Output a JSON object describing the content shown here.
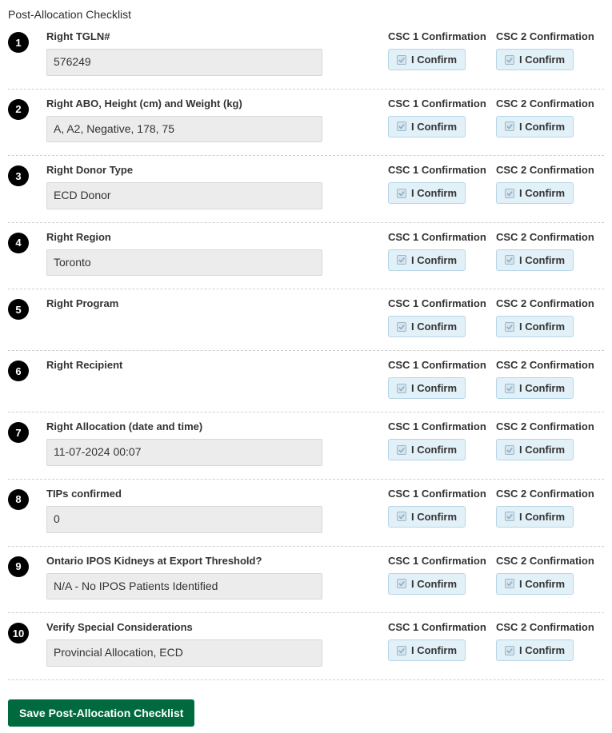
{
  "title": "Post-Allocation Checklist",
  "csc1_header": "CSC 1 Confirmation",
  "csc2_header": "CSC 2 Confirmation",
  "confirm_label": "I Confirm",
  "save_button_label": "Save Post-Allocation Checklist",
  "colors": {
    "number_circle_bg": "#000000",
    "number_circle_text": "#ffffff",
    "input_bg": "#ececec",
    "input_border": "#d7d7d7",
    "confirm_bg": "#e2f0f8",
    "confirm_border": "#b6d6e8",
    "save_bg": "#006a3e",
    "divider": "#cfcfcf"
  },
  "items": [
    {
      "num": "1",
      "label": "Right TGLN#",
      "value": "576249",
      "has_input": true
    },
    {
      "num": "2",
      "label": "Right ABO, Height (cm) and Weight (kg)",
      "value": "A, A2, Negative, 178, 75",
      "has_input": true
    },
    {
      "num": "3",
      "label": "Right Donor Type",
      "value": "ECD Donor",
      "has_input": true
    },
    {
      "num": "4",
      "label": "Right Region",
      "value": "Toronto",
      "has_input": true
    },
    {
      "num": "5",
      "label": "Right Program",
      "value": "",
      "has_input": false
    },
    {
      "num": "6",
      "label": "Right Recipient",
      "value": "",
      "has_input": false
    },
    {
      "num": "7",
      "label": "Right Allocation (date and time)",
      "value": "11-07-2024 00:07",
      "has_input": true
    },
    {
      "num": "8",
      "label": "TIPs confirmed",
      "value": "0",
      "has_input": true
    },
    {
      "num": "9",
      "label": "Ontario IPOS Kidneys at Export Threshold?",
      "value": "N/A - No IPOS Patients Identified",
      "has_input": true
    },
    {
      "num": "10",
      "label": "Verify Special Considerations",
      "value": "Provincial Allocation, ECD",
      "has_input": true
    }
  ]
}
